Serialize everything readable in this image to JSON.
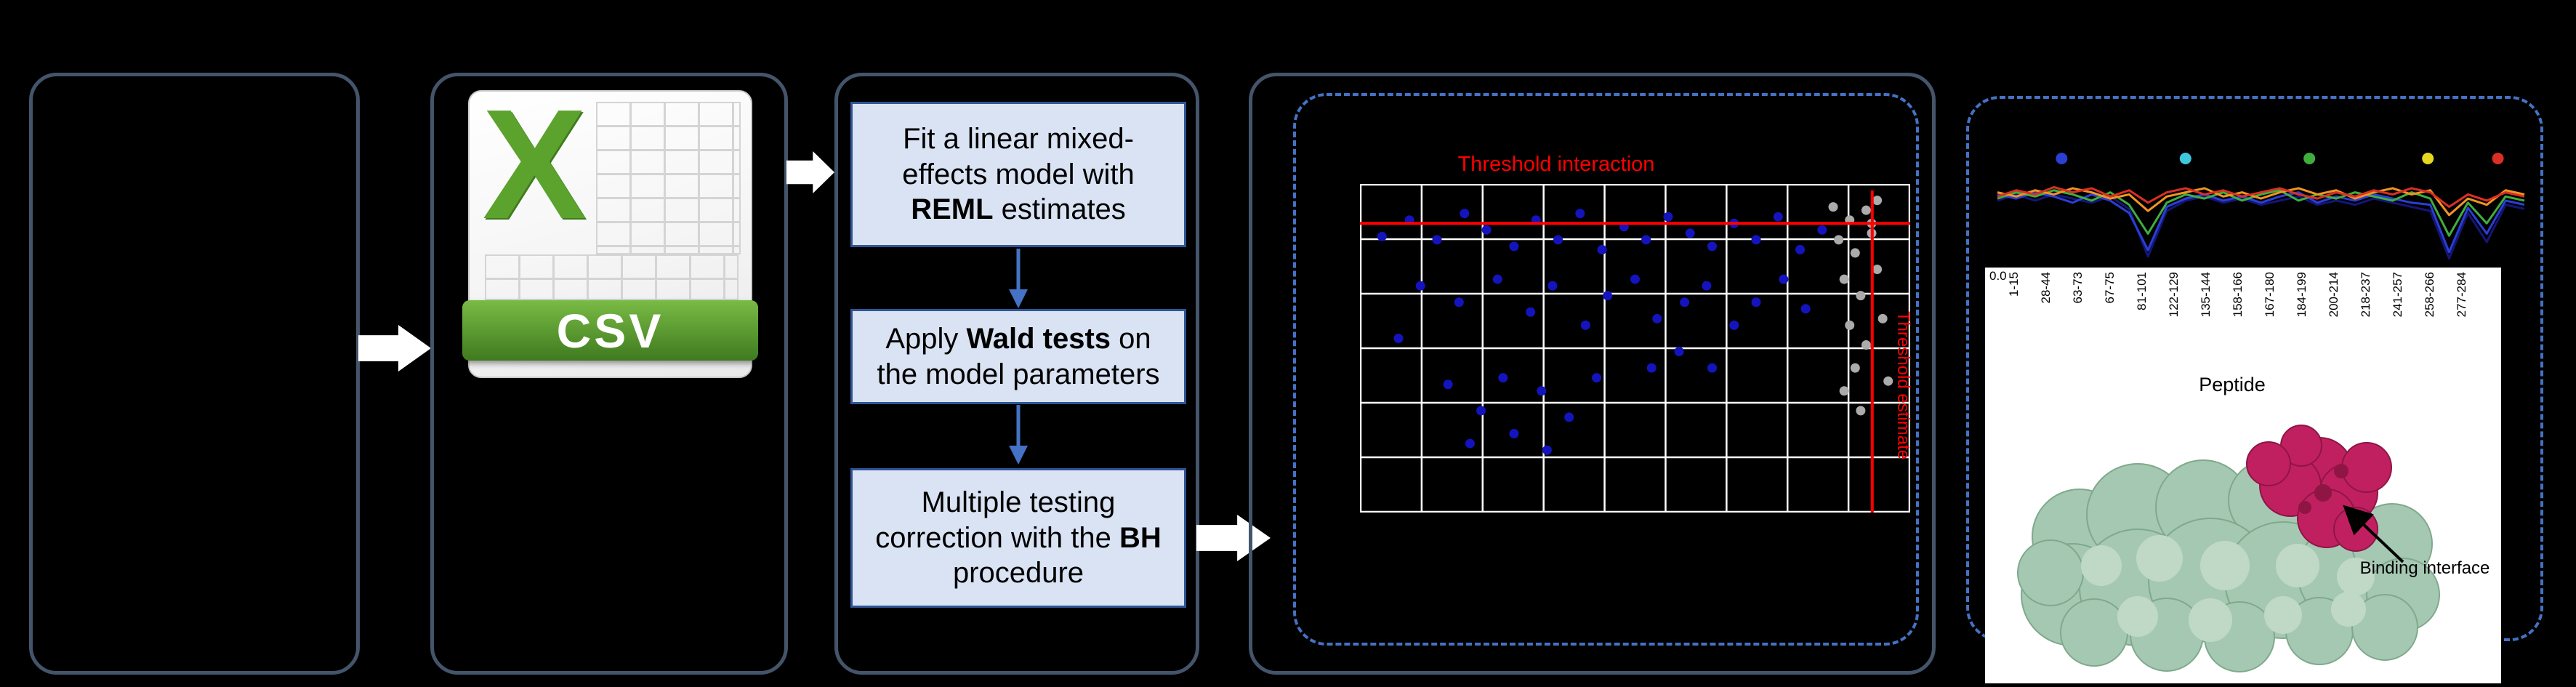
{
  "figure": {
    "csv_icon": {
      "x_mark": "X",
      "label": "CSV"
    },
    "steps": {
      "s1": {
        "pre": "Fit a linear mixed-effects model with ",
        "bold": "REML",
        "post": " estimates"
      },
      "s2": {
        "pre": "Apply ",
        "bold": "Wald tests",
        "post": " on the model parameters"
      },
      "s3": {
        "pre": "Multiple testing correction with the ",
        "bold": "BH",
        "post": " procedure"
      }
    },
    "protein": {
      "annotation": "Binding interface"
    }
  },
  "chart_data": [
    {
      "type": "scatter",
      "title": "Threshold interaction",
      "top_label": "Threshold interaction",
      "right_label": "Threshold estimate",
      "grid": true,
      "x_gridlines": 10,
      "y_gridlines": 7,
      "threshold": {
        "color": "#FF0000",
        "h_y": 0.12,
        "v_x": 0.931
      },
      "series": [
        {
          "name": "blue",
          "color": "#1414BE",
          "points": [
            [
              0.04,
              0.16
            ],
            [
              0.09,
              0.11
            ],
            [
              0.14,
              0.17
            ],
            [
              0.19,
              0.09
            ],
            [
              0.23,
              0.14
            ],
            [
              0.28,
              0.19
            ],
            [
              0.32,
              0.11
            ],
            [
              0.36,
              0.17
            ],
            [
              0.4,
              0.09
            ],
            [
              0.44,
              0.2
            ],
            [
              0.48,
              0.13
            ],
            [
              0.52,
              0.17
            ],
            [
              0.56,
              0.1
            ],
            [
              0.6,
              0.15
            ],
            [
              0.64,
              0.19
            ],
            [
              0.68,
              0.12
            ],
            [
              0.72,
              0.17
            ],
            [
              0.76,
              0.1
            ],
            [
              0.8,
              0.2
            ],
            [
              0.84,
              0.14
            ],
            [
              0.11,
              0.31
            ],
            [
              0.18,
              0.36
            ],
            [
              0.25,
              0.29
            ],
            [
              0.31,
              0.39
            ],
            [
              0.35,
              0.31
            ],
            [
              0.41,
              0.43
            ],
            [
              0.45,
              0.34
            ],
            [
              0.5,
              0.29
            ],
            [
              0.54,
              0.41
            ],
            [
              0.59,
              0.36
            ],
            [
              0.63,
              0.31
            ],
            [
              0.68,
              0.43
            ],
            [
              0.72,
              0.36
            ],
            [
              0.77,
              0.29
            ],
            [
              0.81,
              0.38
            ],
            [
              0.07,
              0.47
            ],
            [
              0.53,
              0.56
            ],
            [
              0.58,
              0.51
            ],
            [
              0.64,
              0.56
            ],
            [
              0.16,
              0.61
            ],
            [
              0.22,
              0.69
            ],
            [
              0.28,
              0.76
            ],
            [
              0.33,
              0.63
            ],
            [
              0.38,
              0.71
            ],
            [
              0.43,
              0.59
            ],
            [
              0.34,
              0.81
            ],
            [
              0.26,
              0.59
            ],
            [
              0.2,
              0.79
            ]
          ]
        },
        {
          "name": "gray",
          "color": "#ABABAB",
          "points": [
            [
              0.86,
              0.07
            ],
            [
              0.89,
              0.11
            ],
            [
              0.92,
              0.08
            ],
            [
              0.87,
              0.17
            ],
            [
              0.9,
              0.21
            ],
            [
              0.93,
              0.15
            ],
            [
              0.88,
              0.29
            ],
            [
              0.91,
              0.34
            ],
            [
              0.89,
              0.43
            ],
            [
              0.92,
              0.49
            ],
            [
              0.9,
              0.56
            ],
            [
              0.88,
              0.63
            ],
            [
              0.91,
              0.69
            ],
            [
              0.94,
              0.26
            ],
            [
              0.95,
              0.41
            ],
            [
              0.94,
              0.05
            ],
            [
              0.96,
              0.6
            ],
            [
              0.93,
              0.12
            ]
          ]
        }
      ]
    },
    {
      "type": "line",
      "y_tick": "0.0",
      "xlabel": "Peptide",
      "categories": [
        "1-15",
        "28-44",
        "63-73",
        "67-75",
        "81-101",
        "122-129",
        "135-144",
        "158-166",
        "167-180",
        "184-199",
        "200-214",
        "218-237",
        "241-257",
        "258-266",
        "277-284"
      ],
      "legend_dots": [
        {
          "color": "#2A3FD4",
          "x": 0.13
        },
        {
          "color": "#3EC8DC",
          "x": 0.36
        },
        {
          "color": "#3FAE3F",
          "x": 0.59
        },
        {
          "color": "#E6D81F",
          "x": 0.81
        },
        {
          "color": "#D93025",
          "x": 0.94
        }
      ],
      "series": [
        {
          "name": "navy",
          "color": "#151578",
          "values": [
            0.62,
            0.68,
            0.62,
            0.68,
            0.64,
            0.6,
            0.66,
            0.54,
            0.08,
            0.52,
            0.62,
            0.66,
            0.6,
            0.64,
            0.58,
            0.62,
            0.66,
            0.58,
            0.62,
            0.58,
            0.64,
            0.6,
            0.56,
            0.52,
            0.06,
            0.5,
            0.22,
            0.58,
            0.54
          ]
        },
        {
          "name": "blue",
          "color": "#2A3FD4",
          "values": [
            0.68,
            0.64,
            0.7,
            0.66,
            0.6,
            0.68,
            0.62,
            0.5,
            0.14,
            0.56,
            0.64,
            0.68,
            0.62,
            0.66,
            0.6,
            0.66,
            0.7,
            0.6,
            0.66,
            0.62,
            0.68,
            0.64,
            0.6,
            0.58,
            0.12,
            0.55,
            0.3,
            0.62,
            0.58
          ]
        },
        {
          "name": "green",
          "color": "#3FAE3F",
          "values": [
            0.64,
            0.7,
            0.66,
            0.72,
            0.68,
            0.62,
            0.7,
            0.58,
            0.3,
            0.6,
            0.68,
            0.64,
            0.7,
            0.62,
            0.68,
            0.72,
            0.62,
            0.68,
            0.64,
            0.7,
            0.66,
            0.62,
            0.7,
            0.64,
            0.28,
            0.6,
            0.4,
            0.66,
            0.62
          ]
        },
        {
          "name": "orange",
          "color": "#F29422",
          "values": [
            0.7,
            0.66,
            0.72,
            0.68,
            0.74,
            0.7,
            0.64,
            0.68,
            0.52,
            0.66,
            0.7,
            0.74,
            0.66,
            0.7,
            0.64,
            0.7,
            0.74,
            0.68,
            0.72,
            0.64,
            0.7,
            0.74,
            0.68,
            0.72,
            0.48,
            0.64,
            0.58,
            0.72,
            0.68
          ]
        },
        {
          "name": "red",
          "color": "#D93025",
          "values": [
            0.66,
            0.72,
            0.68,
            0.75,
            0.7,
            0.74,
            0.66,
            0.72,
            0.6,
            0.7,
            0.74,
            0.68,
            0.72,
            0.66,
            0.7,
            0.74,
            0.68,
            0.64,
            0.7,
            0.66,
            0.72,
            0.68,
            0.74,
            0.7,
            0.56,
            0.68,
            0.62,
            0.7,
            0.66
          ]
        }
      ]
    }
  ]
}
